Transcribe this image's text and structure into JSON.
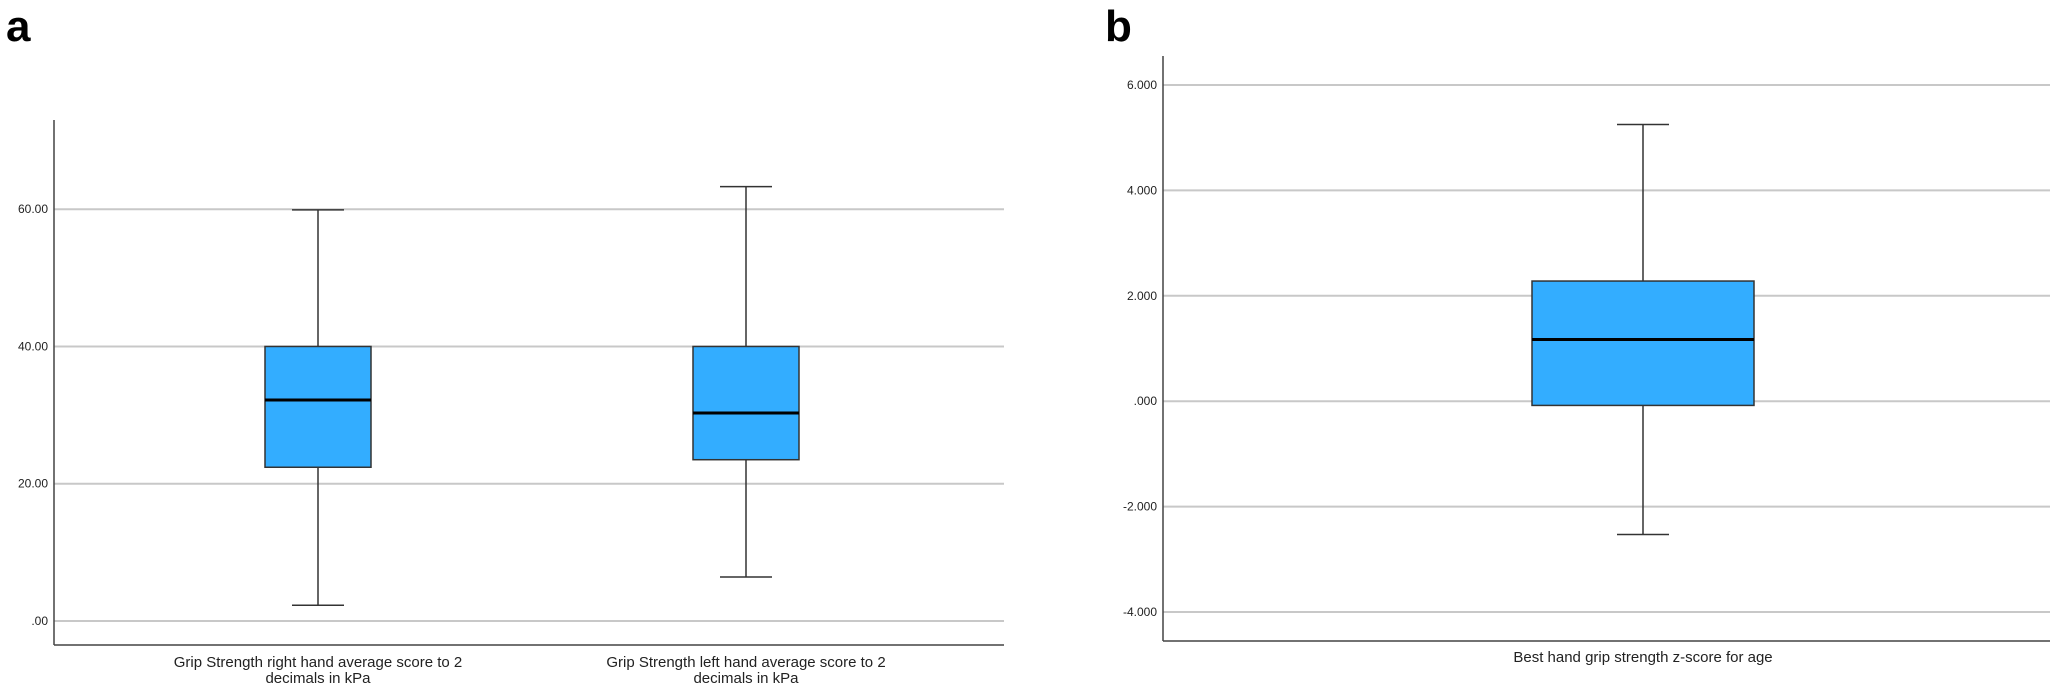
{
  "panels": [
    {
      "label": "a"
    },
    {
      "label": "b"
    }
  ],
  "chart_data": [
    {
      "type": "boxplot",
      "categories_lines": [
        [
          "Grip Strength right hand average score to 2",
          "decimals in kPa"
        ],
        [
          "Grip Strength  left hand average score to 2",
          "decimals in kPa"
        ]
      ],
      "ylim": [
        -3.5,
        73
      ],
      "yticks": [
        0,
        20,
        40,
        60
      ],
      "ytick_labels": [
        ".00",
        "20.00",
        "40.00",
        "60.00"
      ],
      "grid": true,
      "boxes": [
        {
          "whisker_low": 2.3,
          "q1": 22.4,
          "median": 32.2,
          "q3": 40.0,
          "whisker_high": 59.9
        },
        {
          "whisker_low": 6.4,
          "q1": 23.5,
          "median": 30.3,
          "q3": 40.0,
          "whisker_high": 63.3
        }
      ],
      "box_color": "#33adff"
    },
    {
      "type": "boxplot",
      "categories_lines": [
        [
          "Best hand grip strength z-score for age"
        ]
      ],
      "ylim": [
        -4.55,
        6.55
      ],
      "yticks": [
        -4,
        -2,
        0,
        2,
        4,
        6
      ],
      "ytick_labels": [
        "-4.000",
        "-2.000",
        ".000",
        "2.000",
        "4.000",
        "6.000"
      ],
      "grid": true,
      "boxes": [
        {
          "whisker_low": -2.53,
          "q1": -0.08,
          "median": 1.17,
          "q3": 2.28,
          "whisker_high": 5.25
        }
      ],
      "box_color": "#33adff"
    }
  ]
}
